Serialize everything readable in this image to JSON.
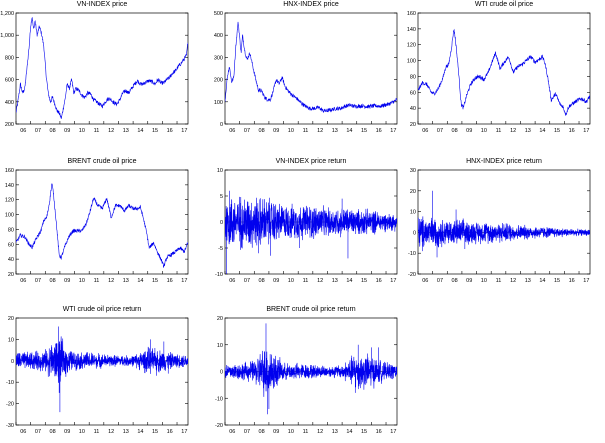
{
  "colors": {
    "series": "#0000ee",
    "frame": "#000000",
    "zero_line": "#000000"
  },
  "chart_data": [
    {
      "type": "line",
      "title": "VN-INDEX price",
      "x_tick_labels": [
        "06",
        "07",
        "08",
        "09",
        "10",
        "11",
        "12",
        "13",
        "14",
        "15",
        "16",
        "17"
      ],
      "x_range": [
        2006,
        2017.75
      ],
      "ylim": [
        200,
        1200
      ],
      "y_tick_labels": [
        "200",
        "400",
        "600",
        "800",
        "1,000",
        "1,200"
      ],
      "y_ticks": [
        200,
        400,
        600,
        800,
        1000,
        1200
      ],
      "zero_line": false,
      "x": [
        2006.0,
        2006.15,
        2006.3,
        2006.45,
        2006.6,
        2006.75,
        2006.9,
        2007.0,
        2007.1,
        2007.2,
        2007.3,
        2007.45,
        2007.6,
        2007.75,
        2007.9,
        2008.05,
        2008.2,
        2008.35,
        2008.5,
        2008.65,
        2008.8,
        2008.95,
        2009.1,
        2009.2,
        2009.35,
        2009.5,
        2009.65,
        2009.8,
        2009.95,
        2010.1,
        2010.3,
        2010.5,
        2010.7,
        2010.9,
        2011.1,
        2011.3,
        2011.5,
        2011.7,
        2011.9,
        2012.1,
        2012.3,
        2012.5,
        2012.7,
        2012.9,
        2013.1,
        2013.3,
        2013.5,
        2013.7,
        2013.9,
        2014.1,
        2014.3,
        2014.5,
        2014.7,
        2014.9,
        2015.1,
        2015.3,
        2015.5,
        2015.7,
        2015.9,
        2016.1,
        2016.3,
        2016.5,
        2016.7,
        2016.9,
        2017.1,
        2017.3,
        2017.5,
        2017.65,
        2017.75
      ],
      "y": [
        300,
        420,
        560,
        480,
        520,
        700,
        900,
        1080,
        1170,
        1050,
        1130,
        1000,
        1080,
        1010,
        900,
        650,
        480,
        400,
        440,
        380,
        320,
        300,
        250,
        320,
        420,
        560,
        520,
        600,
        480,
        520,
        500,
        460,
        440,
        480,
        470,
        420,
        400,
        380,
        360,
        400,
        430,
        420,
        390,
        380,
        420,
        480,
        500,
        480,
        520,
        560,
        590,
        560,
        560,
        580,
        590,
        580,
        560,
        600,
        570,
        570,
        600,
        620,
        660,
        680,
        720,
        750,
        790,
        820,
        950
      ]
    },
    {
      "type": "line",
      "title": "HNX-INDEX price",
      "x_tick_labels": [
        "06",
        "07",
        "08",
        "09",
        "10",
        "11",
        "12",
        "13",
        "14",
        "15",
        "16",
        "17"
      ],
      "x_range": [
        2006,
        2017.75
      ],
      "ylim": [
        0,
        500
      ],
      "y_tick_labels": [
        "0",
        "100",
        "200",
        "300",
        "400",
        "500"
      ],
      "y_ticks": [
        0,
        100,
        200,
        300,
        400,
        500
      ],
      "zero_line": false,
      "x": [
        2006.0,
        2006.15,
        2006.3,
        2006.45,
        2006.6,
        2006.75,
        2006.9,
        2007.0,
        2007.1,
        2007.2,
        2007.35,
        2007.5,
        2007.7,
        2007.9,
        2008.1,
        2008.3,
        2008.5,
        2008.7,
        2008.9,
        2009.1,
        2009.3,
        2009.5,
        2009.7,
        2009.9,
        2010.1,
        2010.3,
        2010.6,
        2010.9,
        2011.2,
        2011.5,
        2011.8,
        2012.1,
        2012.4,
        2012.7,
        2013.0,
        2013.3,
        2013.6,
        2013.9,
        2014.2,
        2014.5,
        2014.8,
        2015.1,
        2015.4,
        2015.7,
        2016.0,
        2016.3,
        2016.6,
        2016.9,
        2017.2,
        2017.5,
        2017.75
      ],
      "y": [
        100,
        210,
        260,
        190,
        210,
        360,
        460,
        390,
        320,
        400,
        330,
        290,
        320,
        260,
        200,
        150,
        150,
        120,
        110,
        110,
        150,
        200,
        180,
        210,
        170,
        150,
        130,
        115,
        95,
        80,
        70,
        70,
        75,
        60,
        60,
        65,
        70,
        70,
        80,
        85,
        80,
        80,
        82,
        78,
        80,
        82,
        80,
        85,
        90,
        100,
        110
      ]
    },
    {
      "type": "line",
      "title": "WTI crude oil price",
      "x_tick_labels": [
        "06",
        "07",
        "08",
        "09",
        "10",
        "11",
        "12",
        "13",
        "14",
        "15",
        "16",
        "17"
      ],
      "x_range": [
        2006,
        2017.75
      ],
      "ylim": [
        20,
        160
      ],
      "y_tick_labels": [
        "20",
        "40",
        "60",
        "80",
        "100",
        "120",
        "140",
        "160"
      ],
      "y_ticks": [
        20,
        40,
        60,
        80,
        100,
        120,
        140,
        160
      ],
      "zero_line": false,
      "x": [
        2006.0,
        2006.3,
        2006.6,
        2006.9,
        2007.1,
        2007.4,
        2007.7,
        2007.9,
        2008.1,
        2008.3,
        2008.45,
        2008.55,
        2008.75,
        2008.95,
        2009.1,
        2009.3,
        2009.6,
        2009.9,
        2010.2,
        2010.5,
        2010.8,
        2011.0,
        2011.3,
        2011.6,
        2011.9,
        2012.2,
        2012.5,
        2012.8,
        2013.1,
        2013.4,
        2013.7,
        2014.0,
        2014.3,
        2014.5,
        2014.7,
        2014.9,
        2015.1,
        2015.4,
        2015.7,
        2015.9,
        2016.1,
        2016.3,
        2016.6,
        2016.9,
        2017.2,
        2017.5,
        2017.75
      ],
      "y": [
        62,
        72,
        70,
        60,
        58,
        65,
        78,
        92,
        95,
        118,
        140,
        128,
        90,
        45,
        40,
        55,
        70,
        78,
        80,
        76,
        85,
        95,
        110,
        90,
        98,
        105,
        85,
        92,
        95,
        100,
        105,
        98,
        102,
        105,
        95,
        75,
        50,
        58,
        45,
        42,
        32,
        42,
        46,
        50,
        52,
        48,
        55
      ]
    },
    {
      "type": "line",
      "title": "BRENT crude oil price",
      "x_tick_labels": [
        "06",
        "07",
        "08",
        "09",
        "10",
        "11",
        "12",
        "13",
        "14",
        "15",
        "16",
        "17"
      ],
      "x_range": [
        2006,
        2017.75
      ],
      "ylim": [
        20,
        160
      ],
      "y_tick_labels": [
        "20",
        "40",
        "60",
        "80",
        "100",
        "120",
        "140",
        "160"
      ],
      "y_ticks": [
        20,
        40,
        60,
        80,
        100,
        120,
        140,
        160
      ],
      "zero_line": false,
      "x": [
        2006.0,
        2006.3,
        2006.6,
        2006.9,
        2007.1,
        2007.4,
        2007.7,
        2007.9,
        2008.1,
        2008.3,
        2008.45,
        2008.55,
        2008.75,
        2008.95,
        2009.1,
        2009.3,
        2009.6,
        2009.9,
        2010.2,
        2010.5,
        2010.8,
        2011.0,
        2011.3,
        2011.6,
        2011.9,
        2012.2,
        2012.5,
        2012.8,
        2013.1,
        2013.4,
        2013.7,
        2014.0,
        2014.3,
        2014.5,
        2014.7,
        2014.9,
        2015.1,
        2015.4,
        2015.7,
        2015.9,
        2016.1,
        2016.3,
        2016.6,
        2016.9,
        2017.2,
        2017.5,
        2017.75
      ],
      "y": [
        62,
        72,
        70,
        60,
        56,
        68,
        78,
        92,
        96,
        118,
        142,
        130,
        90,
        45,
        42,
        55,
        70,
        78,
        78,
        78,
        88,
        100,
        122,
        112,
        108,
        122,
        96,
        112,
        112,
        105,
        112,
        108,
        108,
        110,
        95,
        78,
        55,
        62,
        48,
        40,
        30,
        42,
        46,
        50,
        55,
        50,
        62
      ]
    },
    {
      "type": "line",
      "title": "VN-INDEX price return",
      "x_tick_labels": [
        "06",
        "07",
        "08",
        "09",
        "10",
        "11",
        "12",
        "13",
        "14",
        "15",
        "16",
        "17"
      ],
      "x_range": [
        2006,
        2017.75
      ],
      "ylim": [
        -10,
        10
      ],
      "y_tick_labels": [
        "-10",
        "-5",
        "0",
        "5",
        "10"
      ],
      "y_ticks": [
        -10,
        -5,
        0,
        5,
        10
      ],
      "zero_line": true,
      "amplitude_profile": {
        "x": [
          2006.0,
          2007.0,
          2008.0,
          2009.0,
          2010.0,
          2011.0,
          2012.0,
          2013.0,
          2014.0,
          2015.0,
          2016.0,
          2017.0,
          2017.75
        ],
        "amp": [
          5,
          5,
          4.8,
          4.5,
          3.2,
          3.2,
          3.3,
          2.6,
          2.8,
          2.4,
          2.3,
          1.7,
          1.6
        ]
      },
      "spikes": [
        [
          2006.1,
          -10
        ],
        [
          2006.3,
          6
        ],
        [
          2008.3,
          -6
        ],
        [
          2009.1,
          -6.5
        ],
        [
          2011.1,
          -5
        ],
        [
          2014.4,
          -7
        ],
        [
          2014.0,
          4.5
        ]
      ]
    },
    {
      "type": "line",
      "title": "HNX-INDEX price return",
      "x_tick_labels": [
        "06",
        "07",
        "08",
        "09",
        "10",
        "11",
        "12",
        "13",
        "14",
        "15",
        "16",
        "17"
      ],
      "x_range": [
        2006,
        2017.75
      ],
      "ylim": [
        -20,
        30
      ],
      "y_tick_labels": [
        "-20",
        "-10",
        "0",
        "10",
        "20",
        "30"
      ],
      "y_ticks": [
        -20,
        -10,
        0,
        10,
        20,
        30
      ],
      "zero_line": true,
      "amplitude_profile": {
        "x": [
          2006.0,
          2007.0,
          2008.0,
          2009.0,
          2010.0,
          2011.0,
          2012.0,
          2013.0,
          2014.0,
          2015.0,
          2016.0,
          2017.0,
          2017.75
        ],
        "amp": [
          8,
          7,
          6,
          6,
          5,
          5,
          4.5,
          3.5,
          3,
          2.5,
          2,
          1.5,
          1.5
        ]
      },
      "spikes": [
        [
          2007.0,
          20
        ],
        [
          2007.3,
          -12
        ],
        [
          2008.6,
          11
        ],
        [
          2006.3,
          -9
        ],
        [
          2009.2,
          -8
        ]
      ]
    },
    {
      "type": "line",
      "title": "WTI crude oil price return",
      "x_tick_labels": [
        "06",
        "07",
        "08",
        "09",
        "10",
        "11",
        "12",
        "13",
        "14",
        "15",
        "16",
        "17"
      ],
      "x_range": [
        2006,
        2017.75
      ],
      "ylim": [
        -30,
        20
      ],
      "y_tick_labels": [
        "-30",
        "-20",
        "-10",
        "0",
        "10",
        "20"
      ],
      "y_ticks": [
        -30,
        -20,
        -10,
        0,
        10,
        20
      ],
      "zero_line": true,
      "amplitude_profile": {
        "x": [
          2006.0,
          2007.0,
          2008.0,
          2008.5,
          2009.0,
          2009.5,
          2010.0,
          2011.0,
          2012.0,
          2013.0,
          2014.0,
          2015.0,
          2016.0,
          2017.0,
          2017.75
        ],
        "amp": [
          4,
          4,
          5,
          9,
          11,
          6,
          4,
          4,
          3,
          2.5,
          2.5,
          6,
          5,
          3,
          3
        ]
      },
      "spikes": [
        [
          2008.9,
          16
        ],
        [
          2009.0,
          -24
        ],
        [
          2008.95,
          -15
        ],
        [
          2015.2,
          10
        ],
        [
          2015.6,
          -7
        ],
        [
          2016.1,
          9
        ],
        [
          2016.4,
          -6
        ]
      ]
    },
    {
      "type": "line",
      "title": "BRENT crude oil price return",
      "x_tick_labels": [
        "06",
        "07",
        "08",
        "09",
        "10",
        "11",
        "12",
        "13",
        "14",
        "15",
        "16",
        "17"
      ],
      "x_range": [
        2006,
        2017.75
      ],
      "ylim": [
        -20,
        20
      ],
      "y_tick_labels": [
        "-20",
        "-10",
        "0",
        "10",
        "20"
      ],
      "y_ticks": [
        -20,
        -10,
        0,
        10,
        20
      ],
      "zero_line": true,
      "amplitude_profile": {
        "x": [
          2006.0,
          2007.0,
          2008.0,
          2008.5,
          2009.0,
          2009.5,
          2010.0,
          2011.0,
          2012.0,
          2013.0,
          2014.0,
          2015.0,
          2016.0,
          2017.0,
          2017.75
        ],
        "amp": [
          3,
          3,
          4,
          8,
          10,
          6,
          3,
          3,
          2.5,
          2,
          2.5,
          7,
          6,
          3,
          3
        ]
      },
      "spikes": [
        [
          2008.8,
          18
        ],
        [
          2008.9,
          -16
        ],
        [
          2009.0,
          -14
        ],
        [
          2014.9,
          -8
        ],
        [
          2015.1,
          10
        ],
        [
          2016.0,
          9
        ],
        [
          2016.5,
          9
        ]
      ]
    }
  ]
}
